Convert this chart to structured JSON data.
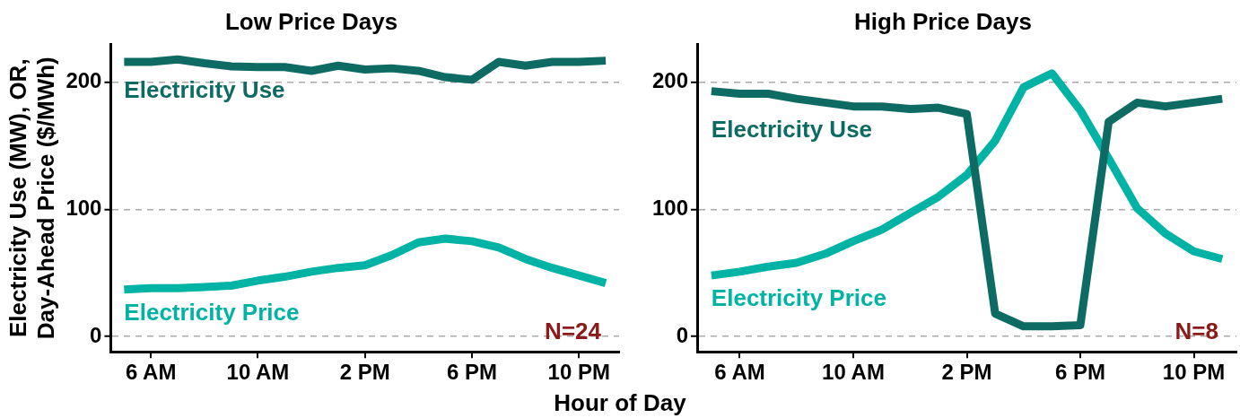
{
  "chart_data": [
    {
      "type": "line",
      "title": "Low Price Days",
      "xlabel": "Hour of Day",
      "ylabel": "Electricity Use (MW), OR,\nDay-Ahead Price ($/MWh)",
      "categories": [
        null,
        "6 AM",
        null,
        null,
        null,
        "10 AM",
        null,
        null,
        null,
        "2 PM",
        null,
        null,
        null,
        "6 PM",
        null,
        null,
        null,
        "10 PM",
        null
      ],
      "series": [
        {
          "name": "Electricity Use",
          "color": "#0e6b63",
          "values": [
            216,
            216,
            218,
            215,
            212.5,
            212,
            212,
            209,
            213,
            210,
            211,
            209,
            204,
            202,
            216,
            213,
            216,
            216,
            217
          ]
        },
        {
          "name": "Electricity Price",
          "color": "#00b3a4",
          "values": [
            37,
            38,
            38,
            39,
            40,
            44,
            47,
            51,
            54,
            56,
            64,
            74,
            77,
            75,
            70,
            61,
            54,
            48,
            42
          ]
        }
      ],
      "ylim": [
        -12,
        230
      ],
      "yticks": [
        0,
        100,
        200
      ],
      "grid": "y",
      "legend": false,
      "marker": "none",
      "line_style": "solid",
      "annotations": [
        "N=24"
      ]
    },
    {
      "type": "line",
      "title": "High Price Days",
      "categories": [
        null,
        "6 AM",
        null,
        null,
        null,
        "10 AM",
        null,
        null,
        null,
        "2 PM",
        null,
        null,
        null,
        "6 PM",
        null,
        null,
        null,
        "10 PM",
        null
      ],
      "series": [
        {
          "name": "Electricity Use",
          "color": "#0e6b63",
          "values": [
            193,
            191,
            191,
            187,
            184,
            181,
            181,
            179,
            180,
            175,
            18,
            8,
            8,
            9,
            169,
            184,
            181,
            184,
            187
          ]
        },
        {
          "name": "Electricity Price",
          "color": "#00b3a4",
          "values": [
            48,
            51,
            55,
            58,
            65,
            75,
            84,
            97,
            110,
            127,
            154,
            196,
            207,
            178,
            140,
            101,
            81,
            67,
            61
          ]
        }
      ],
      "ylim": [
        -12,
        230
      ],
      "yticks": [
        0,
        100,
        200
      ],
      "grid": "y",
      "legend": false,
      "marker": "none",
      "line_style": "solid",
      "annotations": [
        "N=8"
      ]
    }
  ]
}
